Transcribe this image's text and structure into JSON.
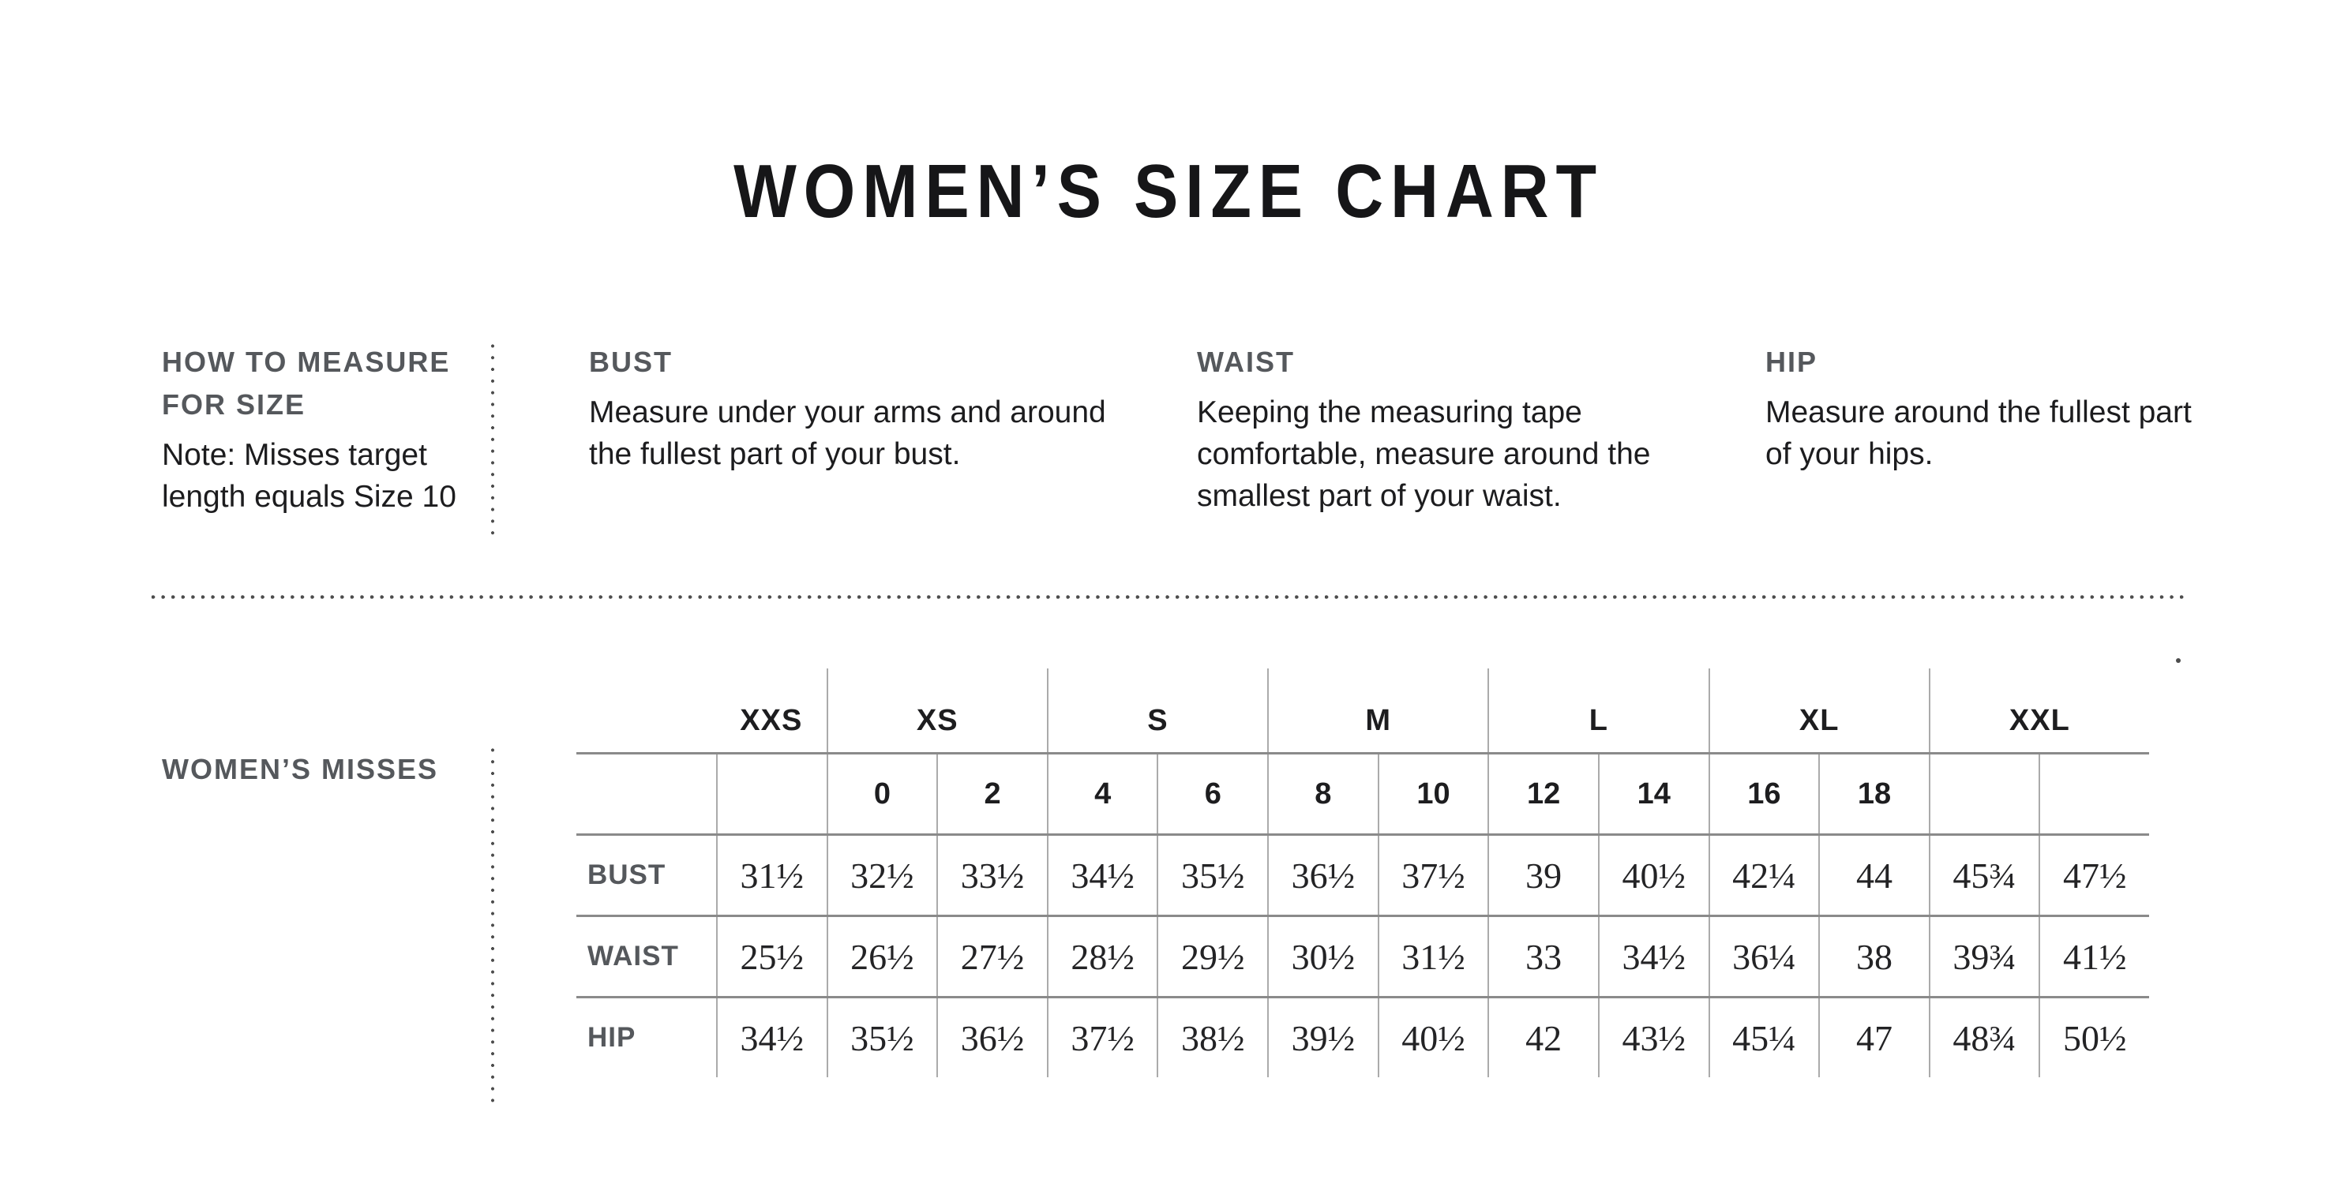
{
  "page": {
    "title": "WOMEN’S SIZE CHART"
  },
  "colors": {
    "text_primary": "#1c1c1e",
    "text_secondary": "#55585c",
    "table_line_horizontal": "#8a8a8a",
    "table_line_vertical": "#ababab",
    "dotted_divider": "#4c4c4c"
  },
  "how_to_measure": {
    "title": "HOW TO MEASURE\nFOR SIZE",
    "note": "Note: Misses target\nlength equals Size 10"
  },
  "measure_guides": [
    {
      "label": "BUST",
      "text": "Measure under your arms and around\nthe fullest part of your bust."
    },
    {
      "label": "WAIST",
      "text": "Keeping the measuring tape\ncomfortable, measure around the\nsmallest part of your waist."
    },
    {
      "label": "HIP",
      "text": "Measure around the fullest part\nof your hips."
    }
  ],
  "section_label": "WOMEN’S MISSES",
  "chart_data": {
    "type": "table",
    "title": "WOMEN’S MISSES",
    "size_groups": [
      {
        "label": "XXS",
        "span": 1
      },
      {
        "label": "XS",
        "span": 2
      },
      {
        "label": "S",
        "span": 2
      },
      {
        "label": "M",
        "span": 2
      },
      {
        "label": "L",
        "span": 2
      },
      {
        "label": "XL",
        "span": 2
      },
      {
        "label": "XXL",
        "span": 2
      }
    ],
    "numeric_sizes": [
      "",
      "0",
      "2",
      "4",
      "6",
      "8",
      "10",
      "12",
      "14",
      "16",
      "18",
      "",
      ""
    ],
    "rows": [
      {
        "label": "BUST",
        "values": [
          "31½",
          "32½",
          "33½",
          "34½",
          "35½",
          "36½",
          "37½",
          "39",
          "40½",
          "42¼",
          "44",
          "45¾",
          "47½"
        ]
      },
      {
        "label": "WAIST",
        "values": [
          "25½",
          "26½",
          "27½",
          "28½",
          "29½",
          "30½",
          "31½",
          "33",
          "34½",
          "36¼",
          "38",
          "39¾",
          "41½"
        ]
      },
      {
        "label": "HIP",
        "values": [
          "34½",
          "35½",
          "36½",
          "37½",
          "38½",
          "39½",
          "40½",
          "42",
          "43½",
          "45¼",
          "47",
          "48¾",
          "50½"
        ]
      }
    ]
  }
}
